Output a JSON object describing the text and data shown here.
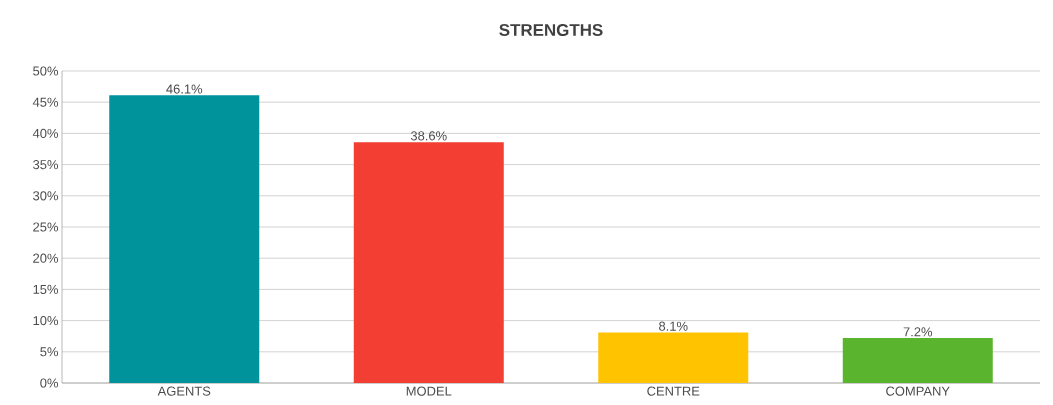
{
  "chart_data": {
    "type": "bar",
    "title": "STRENGTHS",
    "categories": [
      "AGENTS",
      "MODEL",
      "CENTRE",
      "COMPANY"
    ],
    "values": [
      46.1,
      38.6,
      8.1,
      7.2
    ],
    "colors": [
      "#00939c",
      "#f23e33",
      "#ffc300",
      "#5bb42e"
    ],
    "value_labels": [
      "46.1%",
      "38.6%",
      "8.1%",
      "7.2%"
    ],
    "ylim": [
      0,
      50
    ],
    "yticks": [
      {
        "value": 0,
        "label": "0%"
      },
      {
        "value": 5,
        "label": "5%"
      },
      {
        "value": 10,
        "label": "10%"
      },
      {
        "value": 15,
        "label": "15%"
      },
      {
        "value": 20,
        "label": "20%"
      },
      {
        "value": 25,
        "label": "25%"
      },
      {
        "value": 30,
        "label": "30%"
      },
      {
        "value": 35,
        "label": "35%"
      },
      {
        "value": 40,
        "label": "40%"
      },
      {
        "value": 45,
        "label": "45%"
      },
      {
        "value": 50,
        "label": "50%"
      }
    ],
    "grid": "y"
  }
}
